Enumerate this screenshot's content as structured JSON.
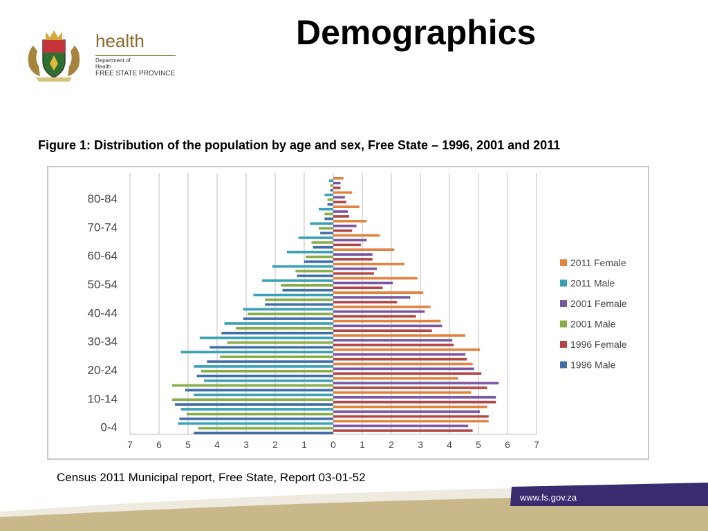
{
  "header": {
    "logo": {
      "name": "health",
      "dept_line1": "Department of",
      "dept_line2": "Health",
      "province": "FREE STATE PROVINCE"
    },
    "title": "Demographics"
  },
  "caption": "Figure 1: Distribution of the population by age and sex, Free State – 1996, 2001 and 2011",
  "source": "Census 2011 Municipal report, Free State, Report 03-01-52",
  "footer": {
    "url": "www.fs.gov.za"
  },
  "colors": {
    "2011 Female": "#e0833f",
    "2011 Male": "#3aa0b5",
    "2001 Female": "#7a56a0",
    "2001 Male": "#86ad47",
    "1996 Female": "#b34545",
    "1996 Male": "#3f6fa6",
    "footer_purple": "#3a2a6e",
    "footer_tan": "#c8b88a"
  },
  "chart_data": {
    "type": "bar",
    "orientation": "horizontal-population-pyramid",
    "categories": [
      "0-4",
      "5-9",
      "10-14",
      "15-19",
      "20-24",
      "25-29",
      "30-34",
      "35-39",
      "40-44",
      "45-49",
      "50-54",
      "55-59",
      "60-64",
      "65-69",
      "70-74",
      "75-79",
      "80-84",
      "85+"
    ],
    "tick_labels_shown": [
      "0-4",
      "10-14",
      "20-24",
      "30-34",
      "40-44",
      "50-54",
      "60-64",
      "70-74",
      "80-84"
    ],
    "xaxis_ticks": [
      "7",
      "6",
      "5",
      "4",
      "3",
      "2",
      "1",
      "0",
      "1",
      "2",
      "3",
      "4",
      "5",
      "6",
      "7"
    ],
    "xlim": [
      -7,
      7
    ],
    "grid": true,
    "legend_position": "right",
    "series": [
      {
        "name": "2011 Female",
        "values": [
          5.35,
          5.3,
          4.75,
          4.3,
          4.8,
          5.05,
          4.55,
          3.7,
          3.35,
          3.1,
          2.9,
          2.45,
          2.1,
          1.6,
          1.15,
          0.9,
          0.65,
          0.35
        ]
      },
      {
        "name": "2011 Male",
        "values": [
          -5.35,
          -5.25,
          -4.8,
          -4.45,
          -4.8,
          -5.25,
          -4.6,
          -3.75,
          -3.1,
          -2.75,
          -2.45,
          -2.1,
          -1.6,
          -1.2,
          -0.8,
          -0.5,
          -0.3,
          -0.15
        ]
      },
      {
        "name": "2001 Female",
        "values": [
          4.65,
          5.05,
          5.6,
          5.7,
          4.85,
          4.55,
          4.1,
          3.75,
          3.15,
          2.65,
          2.05,
          1.5,
          1.35,
          1.15,
          0.8,
          0.5,
          0.4,
          0.25
        ]
      },
      {
        "name": "2001 Male",
        "values": [
          -4.65,
          -5.05,
          -5.55,
          -5.55,
          -4.55,
          -3.9,
          -3.65,
          -3.35,
          -2.95,
          -2.35,
          -1.8,
          -1.3,
          -0.95,
          -0.75,
          -0.5,
          -0.3,
          -0.2,
          -0.1
        ]
      },
      {
        "name": "1996 Female",
        "values": [
          4.8,
          5.35,
          5.6,
          5.3,
          5.1,
          4.6,
          4.15,
          3.4,
          2.85,
          2.2,
          1.7,
          1.4,
          1.35,
          0.95,
          0.65,
          0.55,
          0.45,
          0.25
        ]
      },
      {
        "name": "1996 Male",
        "values": [
          -4.8,
          -5.3,
          -5.45,
          -5.1,
          -4.7,
          -4.35,
          -4.25,
          -3.85,
          -3.1,
          -2.35,
          -1.75,
          -1.25,
          -1.0,
          -0.7,
          -0.45,
          -0.3,
          -0.2,
          -0.1
        ]
      }
    ]
  }
}
